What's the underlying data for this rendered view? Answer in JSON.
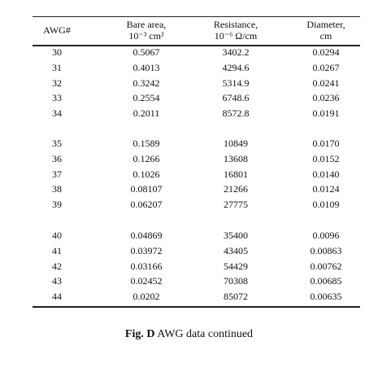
{
  "table": {
    "header": [
      [
        "AWG#"
      ],
      [
        "Bare area,",
        "10⁻³ cm²"
      ],
      [
        "Resistance,",
        "10⁻⁶ Ω/cm"
      ],
      [
        "Diameter,",
        "cm"
      ]
    ],
    "groups": [
      {
        "rows": [
          [
            "30",
            "0.5067",
            "3402.2",
            "0.0294"
          ],
          [
            "31",
            "0.4013",
            "4294.6",
            "0.0267"
          ],
          [
            "32",
            "0.3242",
            "5314.9",
            "0.0241"
          ],
          [
            "33",
            "0.2554",
            "6748.6",
            "0.0236"
          ],
          [
            "34",
            "0.2011",
            "8572.8",
            "0.0191"
          ]
        ]
      },
      {
        "rows": [
          [
            "35",
            "0.1589",
            "10849",
            "0.0170"
          ],
          [
            "36",
            "0.1266",
            "13608",
            "0.0152"
          ],
          [
            "37",
            "0.1026",
            "16801",
            "0.0140"
          ],
          [
            "38",
            "0.08107",
            "21266",
            "0.0124"
          ],
          [
            "39",
            "0.06207",
            "27775",
            "0.0109"
          ]
        ]
      },
      {
        "rows": [
          [
            "40",
            "0.04869",
            "35400",
            "0.0096"
          ],
          [
            "41",
            "0.03972",
            "43405",
            "0.00863"
          ],
          [
            "42",
            "0.03166",
            "54429",
            "0.00762"
          ],
          [
            "43",
            "0.02452",
            "70308",
            "0.00685"
          ],
          [
            "44",
            "0.0202",
            "85072",
            "0.00635"
          ]
        ]
      }
    ]
  },
  "caption": {
    "label": "Fig. D",
    "text": "AWG data continued"
  }
}
